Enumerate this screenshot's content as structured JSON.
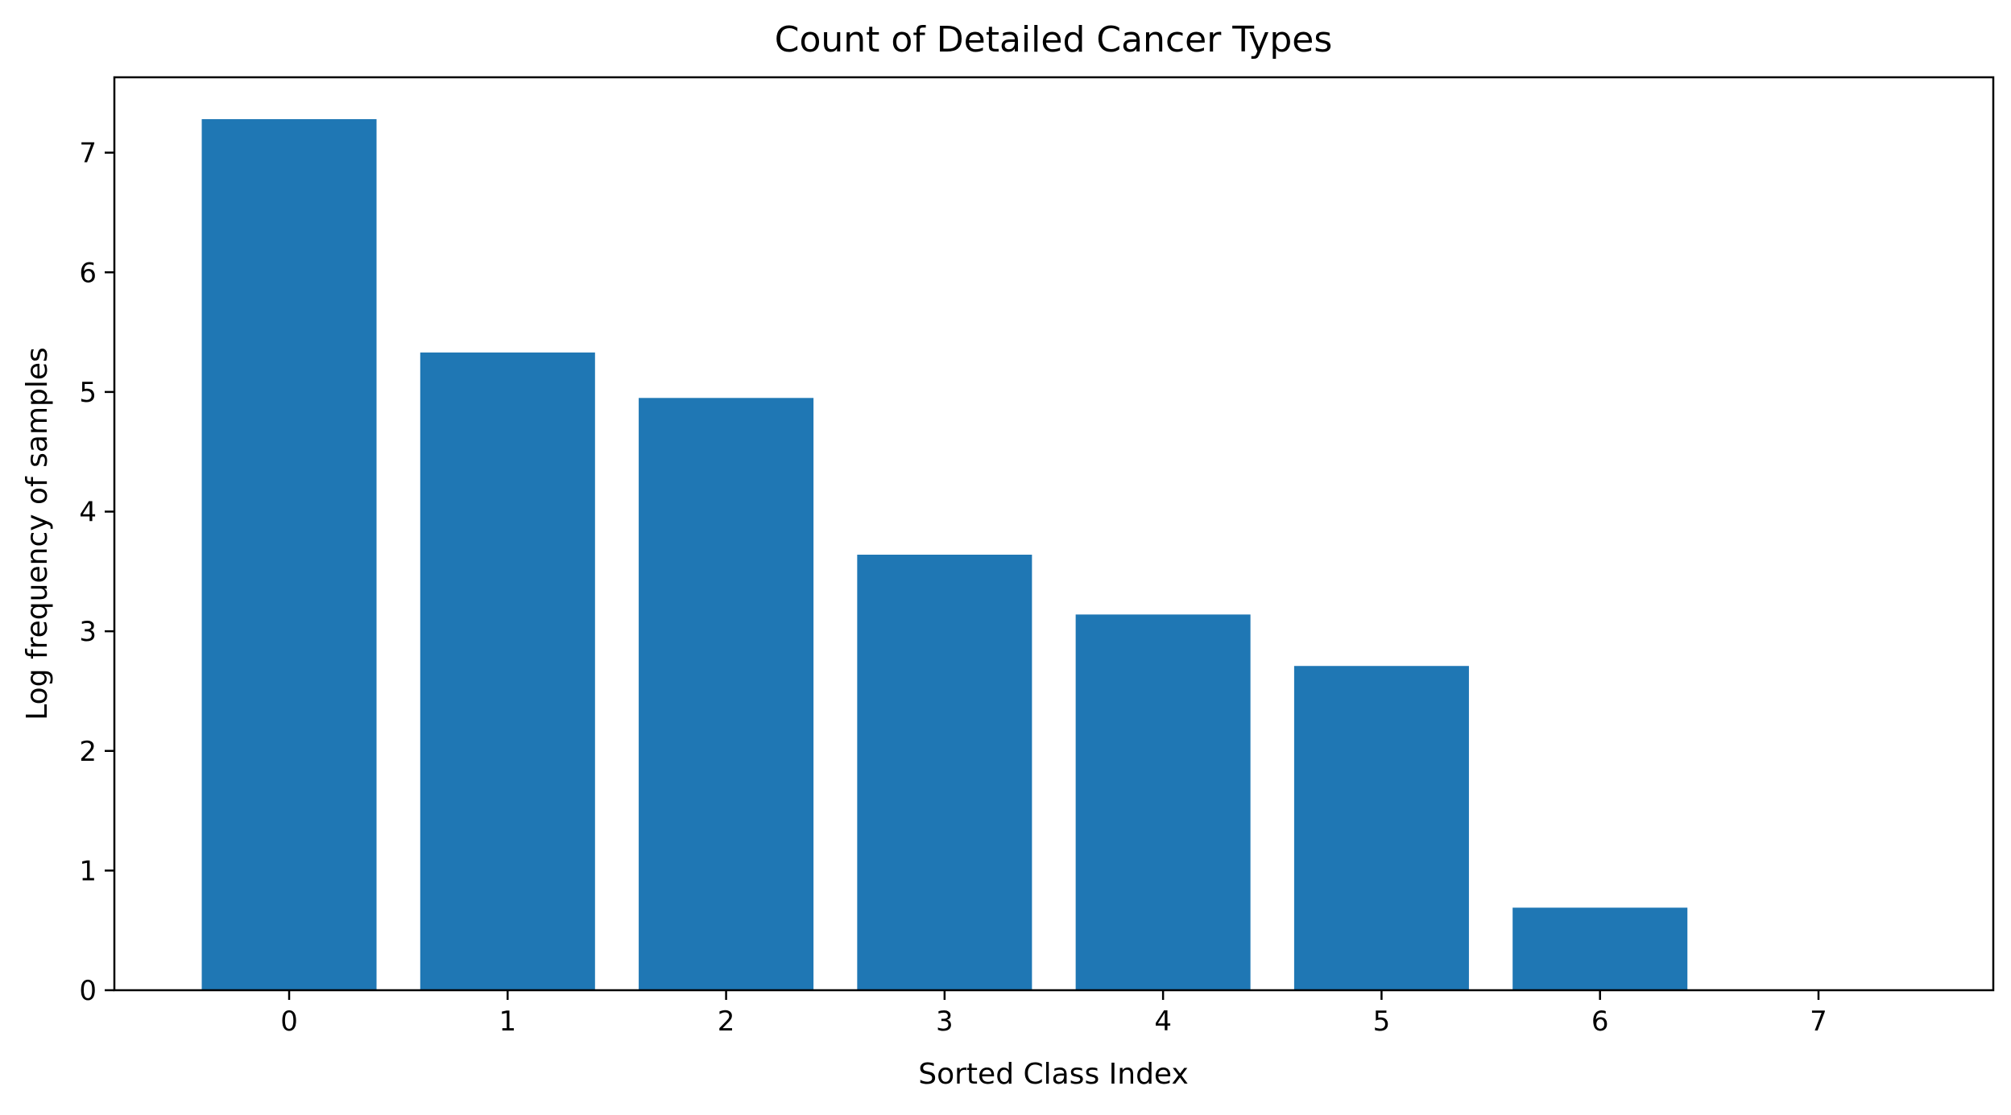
{
  "chart_data": {
    "type": "bar",
    "title": "Count of Detailed Cancer Types",
    "xlabel": "Sorted Class Index",
    "ylabel": "Log frequency of samples",
    "categories": [
      "0",
      "1",
      "2",
      "3",
      "4",
      "5",
      "6",
      "7"
    ],
    "values": [
      7.28,
      5.33,
      4.95,
      3.64,
      3.14,
      2.71,
      0.69,
      0.0
    ],
    "xlim": [
      -0.8,
      7.8
    ],
    "ylim": [
      0,
      7.63
    ],
    "yticks": [
      "0",
      "1",
      "2",
      "3",
      "4",
      "5",
      "6",
      "7"
    ],
    "grid": false,
    "legend": "none",
    "bar_color": "#1f77b4"
  }
}
